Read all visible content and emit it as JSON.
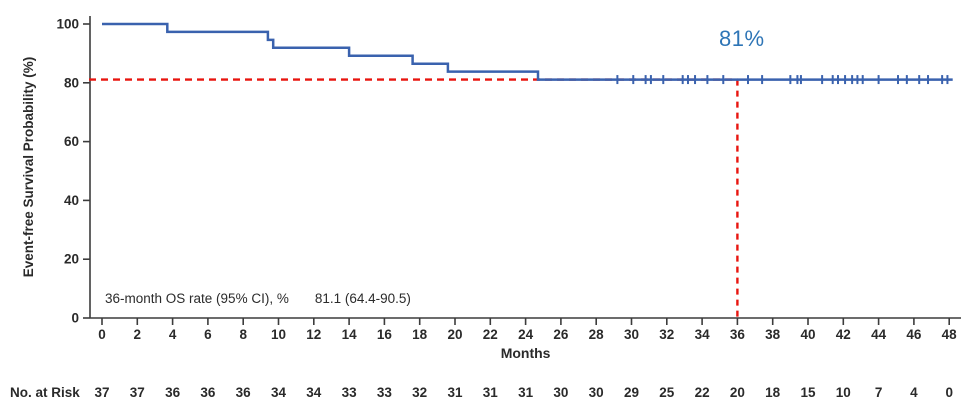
{
  "figure": {
    "annotation_81": "81%",
    "stats_label": "36-month OS rate (95% CI), %",
    "stats_value": "81.1 (64.4-90.5)"
  },
  "colors": {
    "curve_blue": "#3a62ae",
    "reference_red": "#e8150f",
    "annotation_blue": "#2e75b6",
    "axis": "#3c3c3c",
    "text": "#2a2a2a"
  },
  "chart_data": {
    "type": "line",
    "subtype": "kaplan_meier_step",
    "title": "",
    "xlabel": "Months",
    "ylabel": "Event-free Survival Probability (%)",
    "xlim": [
      0,
      48
    ],
    "ylim": [
      0,
      100
    ],
    "xticks": [
      0,
      2,
      4,
      6,
      8,
      10,
      12,
      14,
      16,
      18,
      20,
      22,
      24,
      26,
      28,
      30,
      32,
      34,
      36,
      38,
      40,
      42,
      44,
      46,
      48
    ],
    "yticks": [
      0,
      20,
      40,
      60,
      80,
      100
    ],
    "grid": false,
    "legend": "none",
    "series": [
      {
        "name": "Event-free survival",
        "color": "#3a62ae",
        "step_points": [
          [
            0,
            100
          ],
          [
            3.7,
            100
          ],
          [
            3.7,
            97.3
          ],
          [
            9.4,
            97.3
          ],
          [
            9.4,
            94.6
          ],
          [
            9.7,
            94.6
          ],
          [
            9.7,
            91.9
          ],
          [
            14.0,
            91.9
          ],
          [
            14.0,
            89.2
          ],
          [
            17.6,
            89.2
          ],
          [
            17.6,
            86.5
          ],
          [
            19.6,
            86.5
          ],
          [
            19.6,
            83.8
          ],
          [
            24.7,
            83.8
          ],
          [
            24.7,
            81.1
          ],
          [
            48.2,
            81.1
          ]
        ],
        "censor_marks_y": 81.1,
        "censor_marks_x": [
          29.2,
          30.1,
          30.8,
          31.1,
          31.8,
          32.9,
          33.2,
          33.6,
          34.3,
          35.2,
          36.6,
          37.4,
          39.0,
          39.4,
          39.6,
          40.8,
          41.4,
          41.7,
          42.1,
          42.5,
          42.8,
          43.1,
          44.0,
          45.1,
          45.6,
          46.3,
          46.8,
          47.6,
          47.9
        ]
      }
    ],
    "reference_lines": [
      {
        "type": "horizontal",
        "y": 81.1,
        "from_x": 0,
        "to_x": 36,
        "style": "dashed",
        "color": "#e8150f"
      },
      {
        "type": "vertical",
        "x": 36,
        "from_y": 0,
        "to_y": 81.1,
        "style": "dashed",
        "color": "#e8150f"
      }
    ],
    "annotations": [
      {
        "text": "81%",
        "x": 35.1,
        "y": 90.5,
        "color": "#2e75b6"
      }
    ],
    "inline_stats": {
      "label": "36-month OS rate (95% CI), %",
      "value": "81.1 (64.4-90.5)"
    }
  },
  "risk_table": {
    "label": "No. at Risk",
    "months": [
      0,
      2,
      4,
      6,
      8,
      10,
      12,
      14,
      16,
      18,
      20,
      22,
      24,
      26,
      28,
      30,
      32,
      34,
      36,
      38,
      40,
      42,
      44,
      46,
      48
    ],
    "values": [
      37,
      37,
      36,
      36,
      36,
      34,
      34,
      33,
      33,
      32,
      31,
      31,
      31,
      30,
      30,
      29,
      25,
      22,
      20,
      18,
      15,
      10,
      7,
      4,
      0
    ]
  }
}
